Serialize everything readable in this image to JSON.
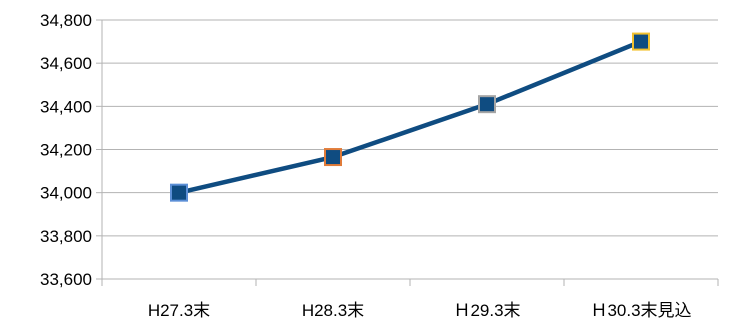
{
  "chart_data": {
    "type": "line",
    "categories": [
      "H27.3末",
      "H28.3末",
      "Ｈ29.3末",
      "Ｈ30.3末見込"
    ],
    "series": [
      {
        "values": [
          34000,
          34165,
          34410,
          34700
        ],
        "line_color": "#0f4c81",
        "marker_fill": "#0f4c81",
        "marker_borders": [
          "#5b8fd6",
          "#e07b39",
          "#a5a5a5",
          "#f2c12e"
        ]
      }
    ],
    "ylim": [
      33600,
      34800
    ],
    "yticks": [
      "33,600",
      "33,800",
      "34,000",
      "34,200",
      "34,400",
      "34,600",
      "34,800"
    ],
    "ytick_values": [
      33600,
      33800,
      34000,
      34200,
      34400,
      34600,
      34800
    ],
    "grid": true,
    "grid_color": "#b3b3b3",
    "legend": "none"
  }
}
